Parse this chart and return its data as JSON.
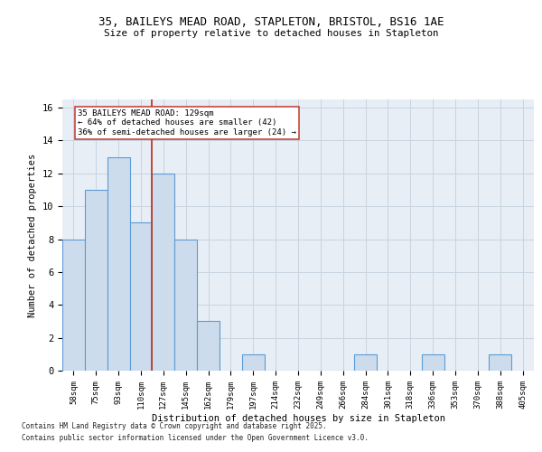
{
  "title1": "35, BAILEYS MEAD ROAD, STAPLETON, BRISTOL, BS16 1AE",
  "title2": "Size of property relative to detached houses in Stapleton",
  "xlabel": "Distribution of detached houses by size in Stapleton",
  "ylabel": "Number of detached properties",
  "categories": [
    "58sqm",
    "75sqm",
    "93sqm",
    "110sqm",
    "127sqm",
    "145sqm",
    "162sqm",
    "179sqm",
    "197sqm",
    "214sqm",
    "232sqm",
    "249sqm",
    "266sqm",
    "284sqm",
    "301sqm",
    "318sqm",
    "336sqm",
    "353sqm",
    "370sqm",
    "388sqm",
    "405sqm"
  ],
  "values": [
    8,
    11,
    13,
    9,
    12,
    8,
    3,
    0,
    1,
    0,
    0,
    0,
    0,
    1,
    0,
    0,
    1,
    0,
    0,
    1,
    0
  ],
  "bar_color": "#ccdcec",
  "bar_edge_color": "#5b9bd5",
  "bar_linewidth": 0.8,
  "vline_x": 3.5,
  "vline_color": "#c0392b",
  "vline_linewidth": 1.3,
  "annotation_text": "35 BAILEYS MEAD ROAD: 129sqm\n← 64% of detached houses are smaller (42)\n36% of semi-detached houses are larger (24) →",
  "ylim": [
    0,
    16.5
  ],
  "yticks": [
    0,
    2,
    4,
    6,
    8,
    10,
    12,
    14,
    16
  ],
  "grid_color": "#c8d4e0",
  "background_color": "#e8eef5",
  "footer1": "Contains HM Land Registry data © Crown copyright and database right 2025.",
  "footer2": "Contains public sector information licensed under the Open Government Licence v3.0."
}
